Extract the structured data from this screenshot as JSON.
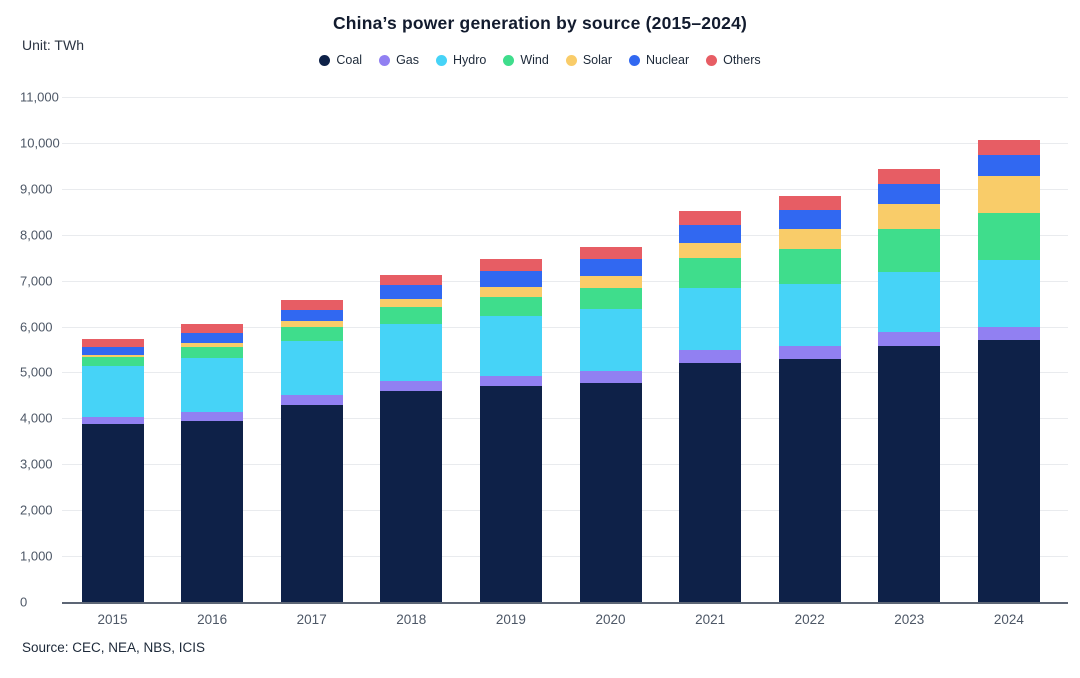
{
  "title": "China’s power generation by source (2015–2024)",
  "unit_label": "Unit: TWh",
  "source_note": "Source: CEC, NEA, NBS, ICIS",
  "y_axis": {
    "tick_labels": [
      "0",
      "1,000",
      "2,000",
      "3,000",
      "4,000",
      "5,000",
      "6,000",
      "7,000",
      "8,000",
      "9,000",
      "10,000",
      "11,000"
    ]
  },
  "chart_data": {
    "type": "bar",
    "stacked": true,
    "title": "China’s power generation by source (2015–2024)",
    "unit": "TWh",
    "xlabel": "",
    "ylabel": "TWh",
    "ylim": [
      0,
      11000
    ],
    "ytick_step": 1000,
    "grid": true,
    "legend_position": "top",
    "categories": [
      "2015",
      "2016",
      "2017",
      "2018",
      "2019",
      "2020",
      "2021",
      "2022",
      "2023",
      "2024"
    ],
    "series": [
      {
        "name": "Coal",
        "color": "#0e2148",
        "values": [
          3870,
          3950,
          4300,
          4600,
          4700,
          4780,
          5200,
          5300,
          5580,
          5700
        ]
      },
      {
        "name": "Gas",
        "color": "#9180f2",
        "values": [
          150,
          190,
          200,
          215,
          230,
          250,
          290,
          280,
          300,
          300
        ]
      },
      {
        "name": "Hydro",
        "color": "#46d3f7",
        "values": [
          1130,
          1180,
          1195,
          1250,
          1300,
          1355,
          1340,
          1350,
          1300,
          1450
        ]
      },
      {
        "name": "Wind",
        "color": "#3fdd8c",
        "values": [
          185,
          240,
          305,
          365,
          405,
          465,
          655,
          770,
          940,
          1030
        ]
      },
      {
        "name": "Solar",
        "color": "#f9cc69",
        "values": [
          45,
          75,
          120,
          175,
          225,
          260,
          330,
          430,
          550,
          810
        ]
      },
      {
        "name": "Nuclear",
        "color": "#3168f1",
        "values": [
          170,
          215,
          250,
          295,
          350,
          365,
          405,
          420,
          430,
          445
        ]
      },
      {
        "name": "Others",
        "color": "#e75d64",
        "values": [
          180,
          200,
          205,
          230,
          260,
          250,
          300,
          300,
          330,
          340
        ]
      }
    ],
    "totals": [
      5730,
      6050,
      6575,
      7130,
      7470,
      7725,
      8520,
      8850,
      9430,
      10075
    ]
  },
  "layout_colors": {
    "grid": "#e9ebee",
    "axis_line": "#5d6675",
    "tick_text": "#4d5766",
    "title_text": "#121b2e"
  }
}
